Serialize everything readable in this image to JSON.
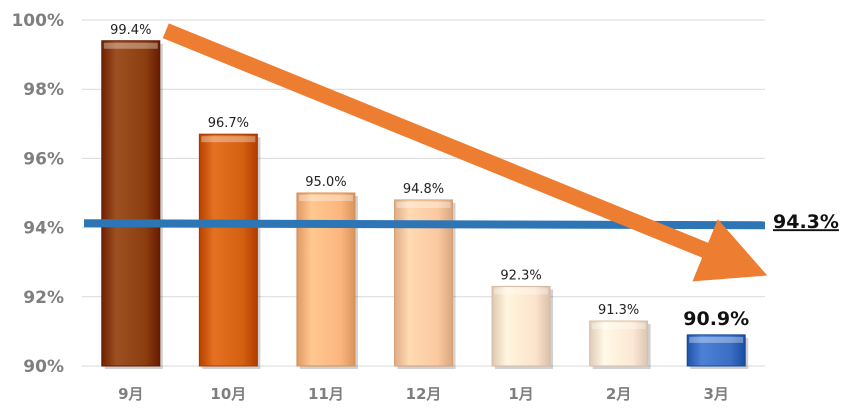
{
  "chart_data": {
    "type": "bar",
    "categories": [
      "9月",
      "10月",
      "11月",
      "12月",
      "1月",
      "2月",
      "3月"
    ],
    "values": [
      99.4,
      96.7,
      95.0,
      94.8,
      92.3,
      91.3,
      90.9
    ],
    "value_labels": [
      "99.4%",
      "96.7%",
      "95.0%",
      "94.8%",
      "92.3%",
      "91.3%",
      "90.9%"
    ],
    "bar_colors": [
      "#8B3E10",
      "#D35F10",
      "#FBB67E",
      "#FBC8A0",
      "#FCE3CC",
      "#FCE7D4",
      "#3A6FC4"
    ],
    "y_ticks": [
      "90%",
      "92%",
      "94%",
      "96%",
      "98%",
      "100%"
    ],
    "y_tick_values": [
      90,
      92,
      94,
      96,
      98,
      100
    ],
    "ylim": [
      90,
      100
    ],
    "grid": true,
    "reference_line": {
      "value": 94.3,
      "label": "94.3%",
      "color": "#2E75B6"
    },
    "trend_arrow": {
      "from_category": "9月",
      "to_category": "3月",
      "color": "#ED7D31"
    },
    "title": "",
    "xlabel": "",
    "ylabel": ""
  }
}
